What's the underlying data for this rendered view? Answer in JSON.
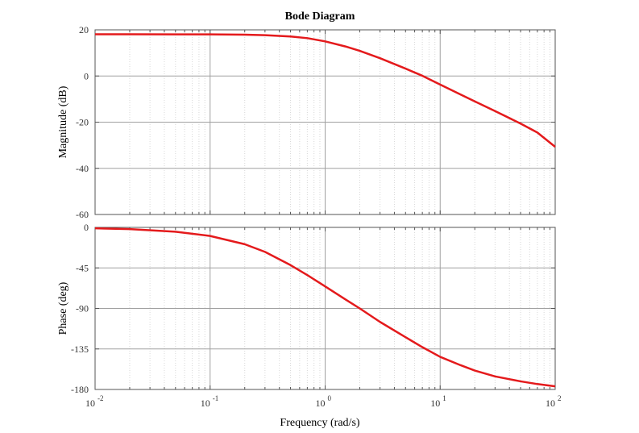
{
  "chart_data": {
    "type": "line",
    "title": "Bode Diagram",
    "xlabel": "Frequency  (rad/s)",
    "xscale": "log",
    "xlim": [
      0.01,
      100
    ],
    "x_ticks": [
      {
        "base": "10",
        "exp": "-2"
      },
      {
        "base": "10",
        "exp": "-1"
      },
      {
        "base": "10",
        "exp": "0"
      },
      {
        "base": "10",
        "exp": "1"
      },
      {
        "base": "10",
        "exp": "2"
      }
    ],
    "grid": true,
    "line_color": "#e41a1c",
    "panels": [
      {
        "id": "magnitude",
        "ylabel": "Magnitude (dB)",
        "ylim": [
          -60,
          20
        ],
        "y_ticks": [
          "20",
          "0",
          "-20",
          "-40",
          "-60"
        ],
        "series": {
          "x": [
            0.01,
            0.02,
            0.05,
            0.1,
            0.2,
            0.3,
            0.5,
            0.7,
            1,
            1.5,
            2,
            3,
            5,
            7,
            10,
            15,
            20,
            30,
            50,
            70,
            100
          ],
          "y": [
            18.06,
            18.06,
            18.05,
            18.02,
            17.9,
            17.7,
            17.1,
            16.4,
            15.0,
            12.8,
            10.9,
            7.7,
            3.2,
            0.1,
            -3.7,
            -8.0,
            -11.0,
            -15.2,
            -20.6,
            -24.5,
            -30.7
          ]
        }
      },
      {
        "id": "phase",
        "ylabel": "Phase (deg)",
        "ylim": [
          -180,
          0
        ],
        "y_ticks": [
          "0",
          "-45",
          "-90",
          "-135",
          "-180"
        ],
        "series": {
          "x": [
            0.01,
            0.02,
            0.05,
            0.1,
            0.2,
            0.3,
            0.5,
            0.7,
            1,
            1.5,
            2,
            3,
            5,
            7,
            10,
            15,
            20,
            30,
            50,
            70,
            100
          ],
          "y": [
            -1.0,
            -1.9,
            -4.8,
            -9.5,
            -18.7,
            -27.2,
            -41.9,
            -53.0,
            -65.5,
            -80.0,
            -90.0,
            -105.0,
            -122.0,
            -133.0,
            -143.8,
            -153.0,
            -159.0,
            -165.5,
            -171.0,
            -174.0,
            -176.5
          ]
        }
      }
    ]
  }
}
